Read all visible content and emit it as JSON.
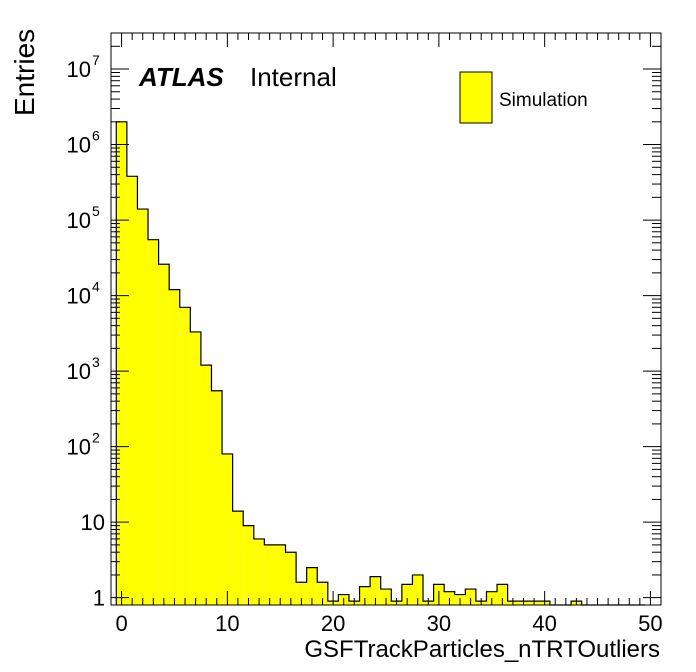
{
  "chart_data": {
    "type": "bar",
    "xlabel": "GSFTrackParticles_nTRTOutliers",
    "ylabel": "Entries",
    "xlim": [
      -1,
      51
    ],
    "ylim": [
      0.8,
      30000000
    ],
    "yscale": "log",
    "bin_width": 1,
    "bin_start": -0.5,
    "x_ticks": [
      0,
      10,
      20,
      30,
      40,
      50
    ],
    "y_ticks": [
      {
        "value": 1,
        "base": "1",
        "exp": ""
      },
      {
        "value": 10,
        "base": "10",
        "exp": ""
      },
      {
        "value": 100,
        "base": "10",
        "exp": "2"
      },
      {
        "value": 1000,
        "base": "10",
        "exp": "3"
      },
      {
        "value": 10000,
        "base": "10",
        "exp": "4"
      },
      {
        "value": 100000,
        "base": "10",
        "exp": "5"
      },
      {
        "value": 1000000,
        "base": "10",
        "exp": "6"
      },
      {
        "value": 10000000,
        "base": "10",
        "exp": "7"
      }
    ],
    "series": [
      {
        "name": "Simulation",
        "color": "#ffff00",
        "values": [
          2000000,
          380000,
          140000,
          55000,
          26000,
          12000,
          7000,
          3300,
          1200,
          550,
          80,
          14,
          9,
          6,
          5,
          5,
          4,
          1.6,
          2.5,
          1.6,
          0.9,
          1.1,
          0.9,
          1.4,
          1.9,
          1.3,
          0.9,
          1.5,
          2.0,
          0.9,
          1.5,
          1.2,
          1.1,
          1.3,
          0.9,
          1.2,
          1.5,
          0.9,
          0.9,
          0.9,
          0.9,
          0.0,
          0.0,
          0.9,
          0.0,
          0.0,
          0.0,
          0.0,
          0.0,
          0.0
        ]
      }
    ],
    "legend_position": "top-right",
    "grid": false
  },
  "annotations": {
    "atlas": "ATLAS",
    "internal": "Internal"
  },
  "colors": {
    "fill": "#ffff00",
    "stroke": "#000000",
    "background": "#ffffff"
  }
}
